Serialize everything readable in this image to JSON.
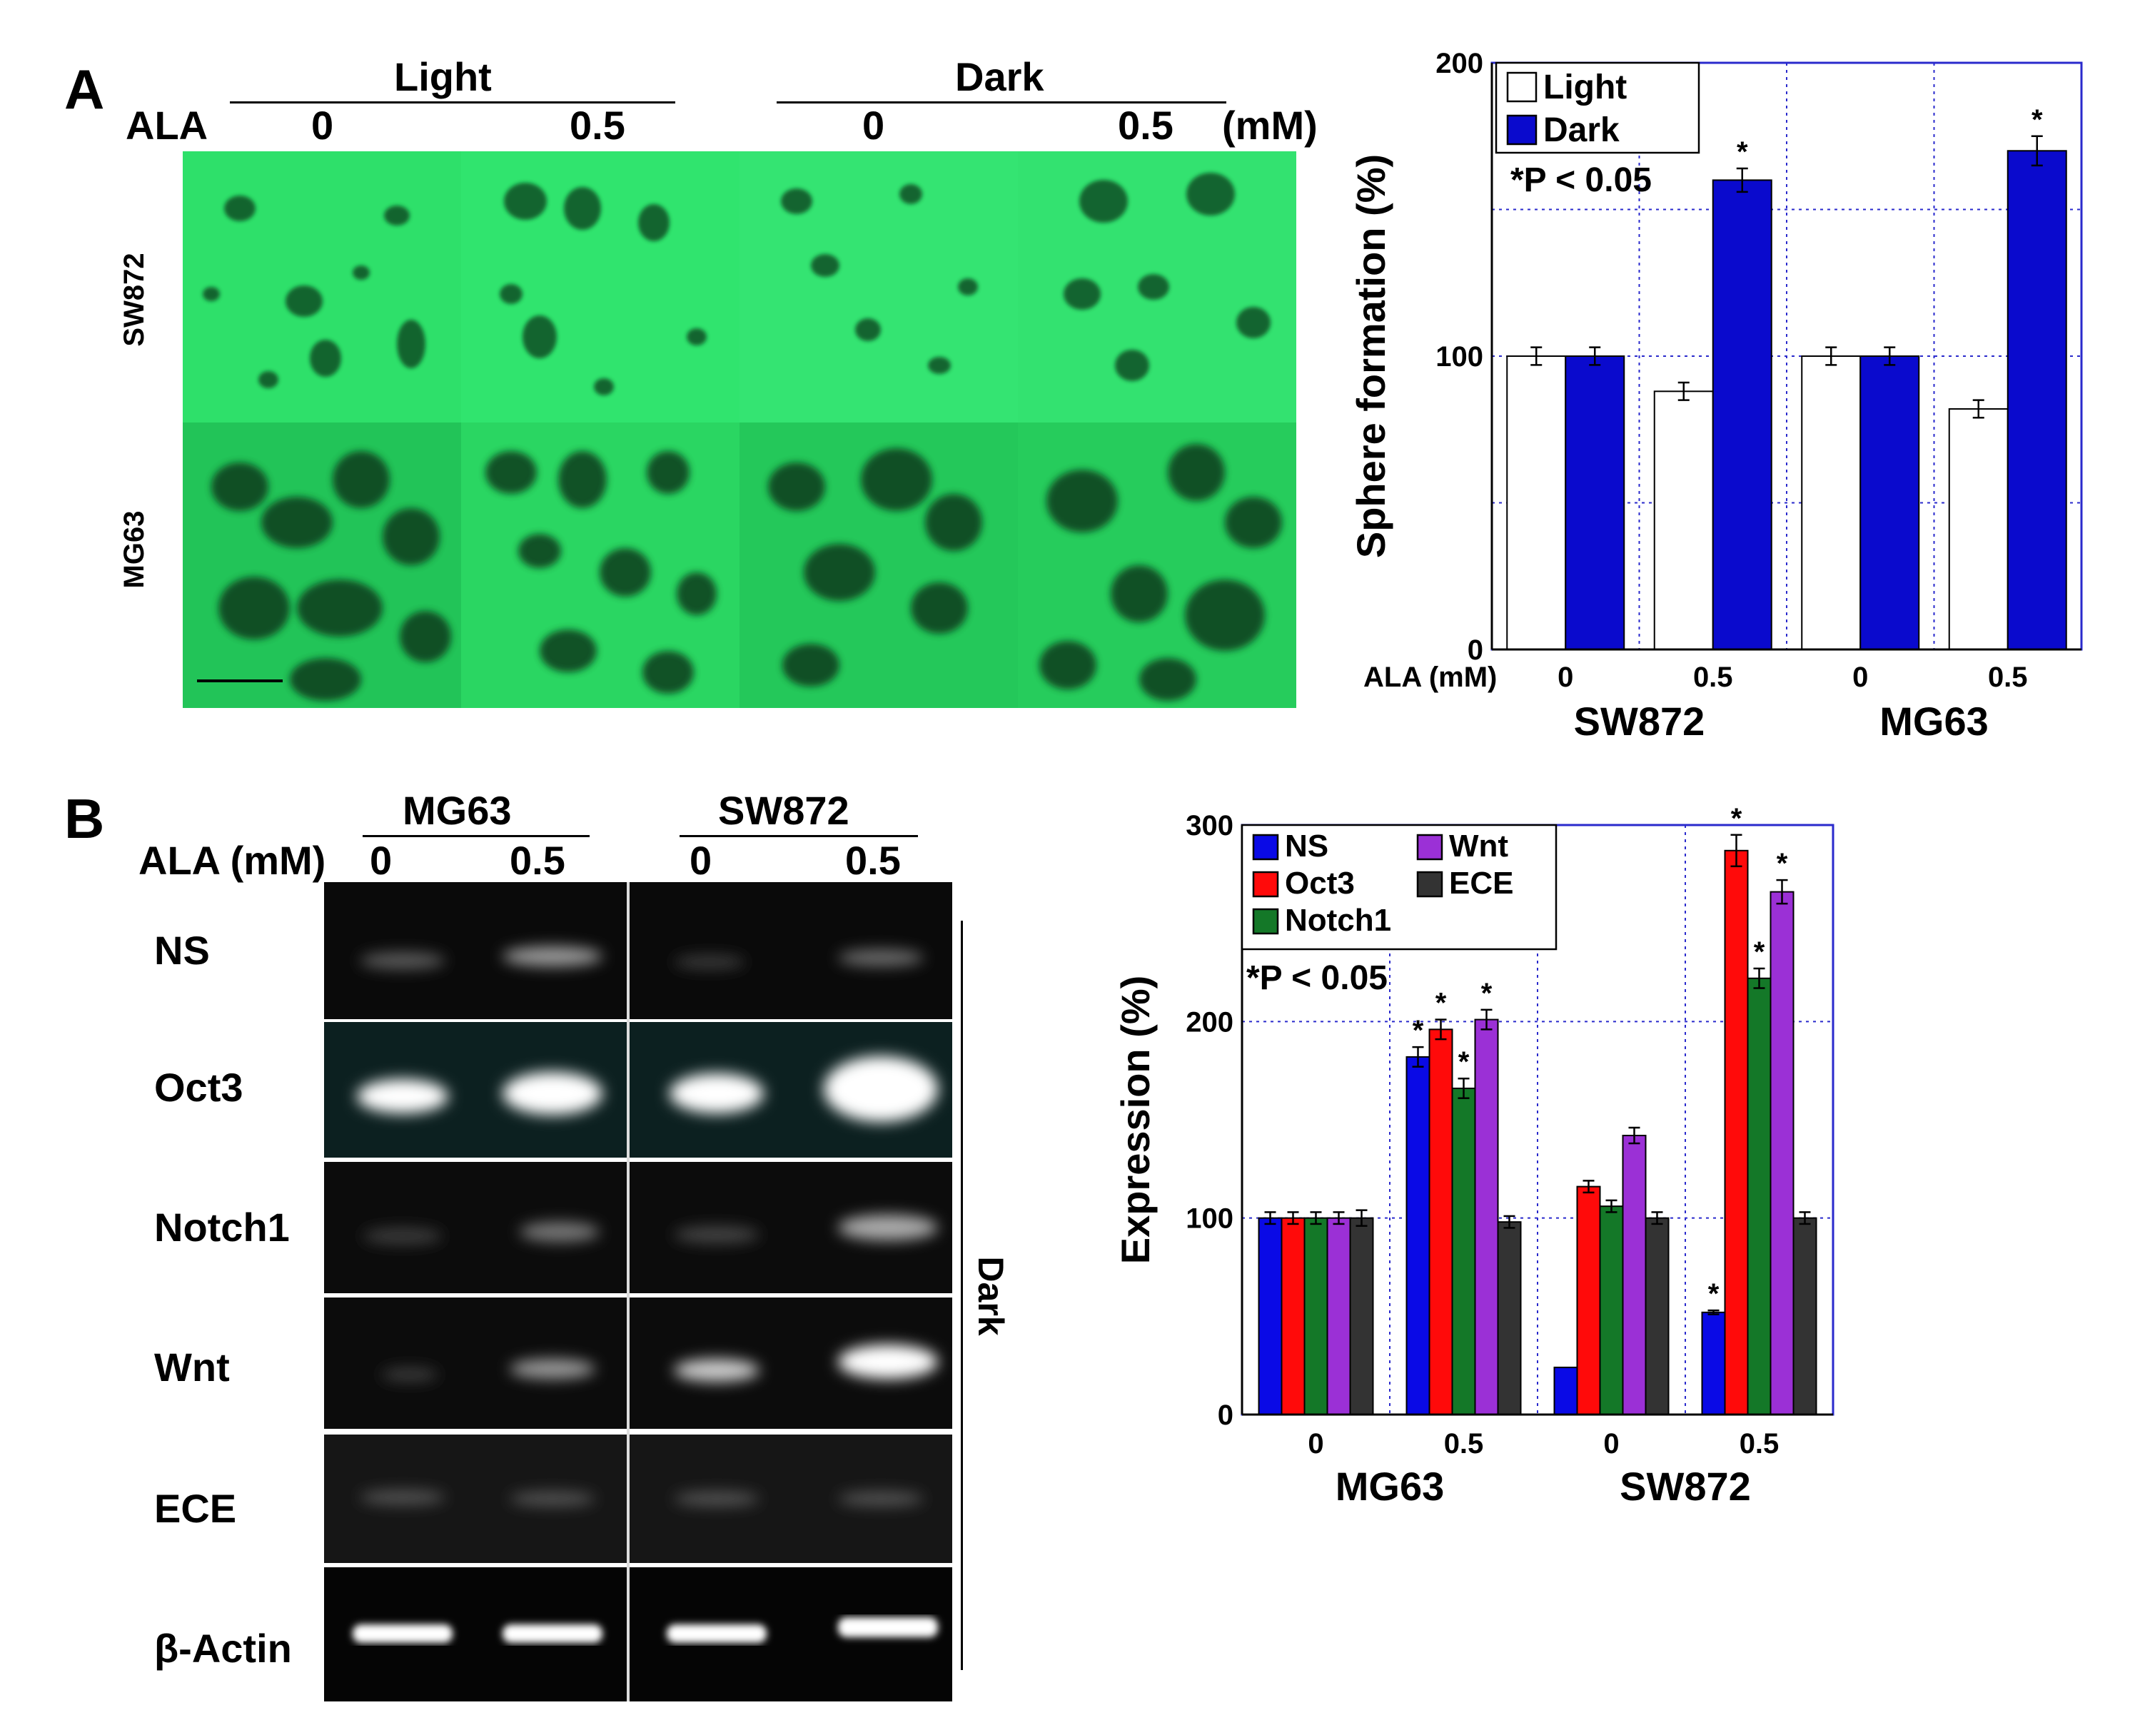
{
  "panel_a": {
    "letter": "A",
    "condition_light": "Light",
    "condition_dark": "Dark",
    "ala_label": "ALA",
    "doses": [
      "0",
      "0.5",
      "0",
      "0.5"
    ],
    "unit": "(mM)",
    "rows": [
      "SW872",
      "MG63"
    ]
  },
  "panel_b": {
    "letter": "B",
    "cell_mg63": "MG63",
    "cell_sw872": "SW872",
    "ala_label": "ALA (mM)",
    "doses": [
      "0",
      "0.5",
      "0",
      "0.5"
    ],
    "genes": [
      "NS",
      "Oct3",
      "Notch1",
      "Wnt",
      "ECE",
      "β-Actin"
    ],
    "side_label": "Dark"
  },
  "chart_data": [
    {
      "type": "bar",
      "title": "",
      "ylabel": "Sphere formation (%)",
      "xlabel": "",
      "ylim": [
        0,
        200
      ],
      "yticks": [
        0,
        100,
        200
      ],
      "grid": true,
      "legend_position": "top-left",
      "ala_label": "ALA (mM)",
      "categories": [
        "0",
        "0.5",
        "0",
        "0.5"
      ],
      "groups": [
        "SW872",
        "MG63"
      ],
      "series": [
        {
          "name": "Light",
          "color": "#ffffff",
          "values": [
            100,
            88,
            100,
            82
          ],
          "errors": [
            3,
            3,
            3,
            3
          ],
          "stars": [
            false,
            false,
            false,
            false
          ]
        },
        {
          "name": "Dark",
          "color": "#0a0acd",
          "values": [
            100,
            160,
            100,
            170
          ],
          "errors": [
            3,
            4,
            3,
            5
          ],
          "stars": [
            false,
            true,
            false,
            true
          ]
        }
      ],
      "annotation": "*P < 0.05",
      "star_symbol": "*"
    },
    {
      "type": "bar",
      "title": "",
      "ylabel": "Expression (%)",
      "xlabel": "",
      "ylim": [
        0,
        300
      ],
      "yticks": [
        0,
        100,
        200,
        300
      ],
      "grid": true,
      "legend_position": "top-left",
      "categories": [
        "0",
        "0.5",
        "0",
        "0.5"
      ],
      "groups": [
        "MG63",
        "SW872"
      ],
      "series": [
        {
          "name": "NS",
          "color": "#0a0ae6",
          "values": [
            100,
            182,
            24,
            52
          ],
          "errors": [
            3,
            5,
            0,
            1
          ],
          "stars": [
            false,
            true,
            false,
            true
          ]
        },
        {
          "name": "Oct3",
          "color": "#ff0a0a",
          "values": [
            100,
            196,
            116,
            287
          ],
          "errors": [
            3,
            5,
            3,
            8
          ],
          "stars": [
            false,
            true,
            false,
            true
          ]
        },
        {
          "name": "Notch1",
          "color": "#147828",
          "values": [
            100,
            166,
            106,
            222
          ],
          "errors": [
            3,
            5,
            3,
            5
          ],
          "stars": [
            false,
            true,
            false,
            true
          ]
        },
        {
          "name": "Wnt",
          "color": "#9b30d6",
          "values": [
            100,
            201,
            142,
            266
          ],
          "errors": [
            3,
            5,
            4,
            6
          ],
          "stars": [
            false,
            true,
            false,
            true
          ]
        },
        {
          "name": "ECE",
          "color": "#333333",
          "values": [
            100,
            98,
            100,
            100
          ],
          "errors": [
            4,
            3,
            3,
            3
          ],
          "stars": [
            false,
            false,
            false,
            false
          ]
        }
      ],
      "annotation": "*P < 0.05",
      "star_symbol": "*"
    }
  ]
}
